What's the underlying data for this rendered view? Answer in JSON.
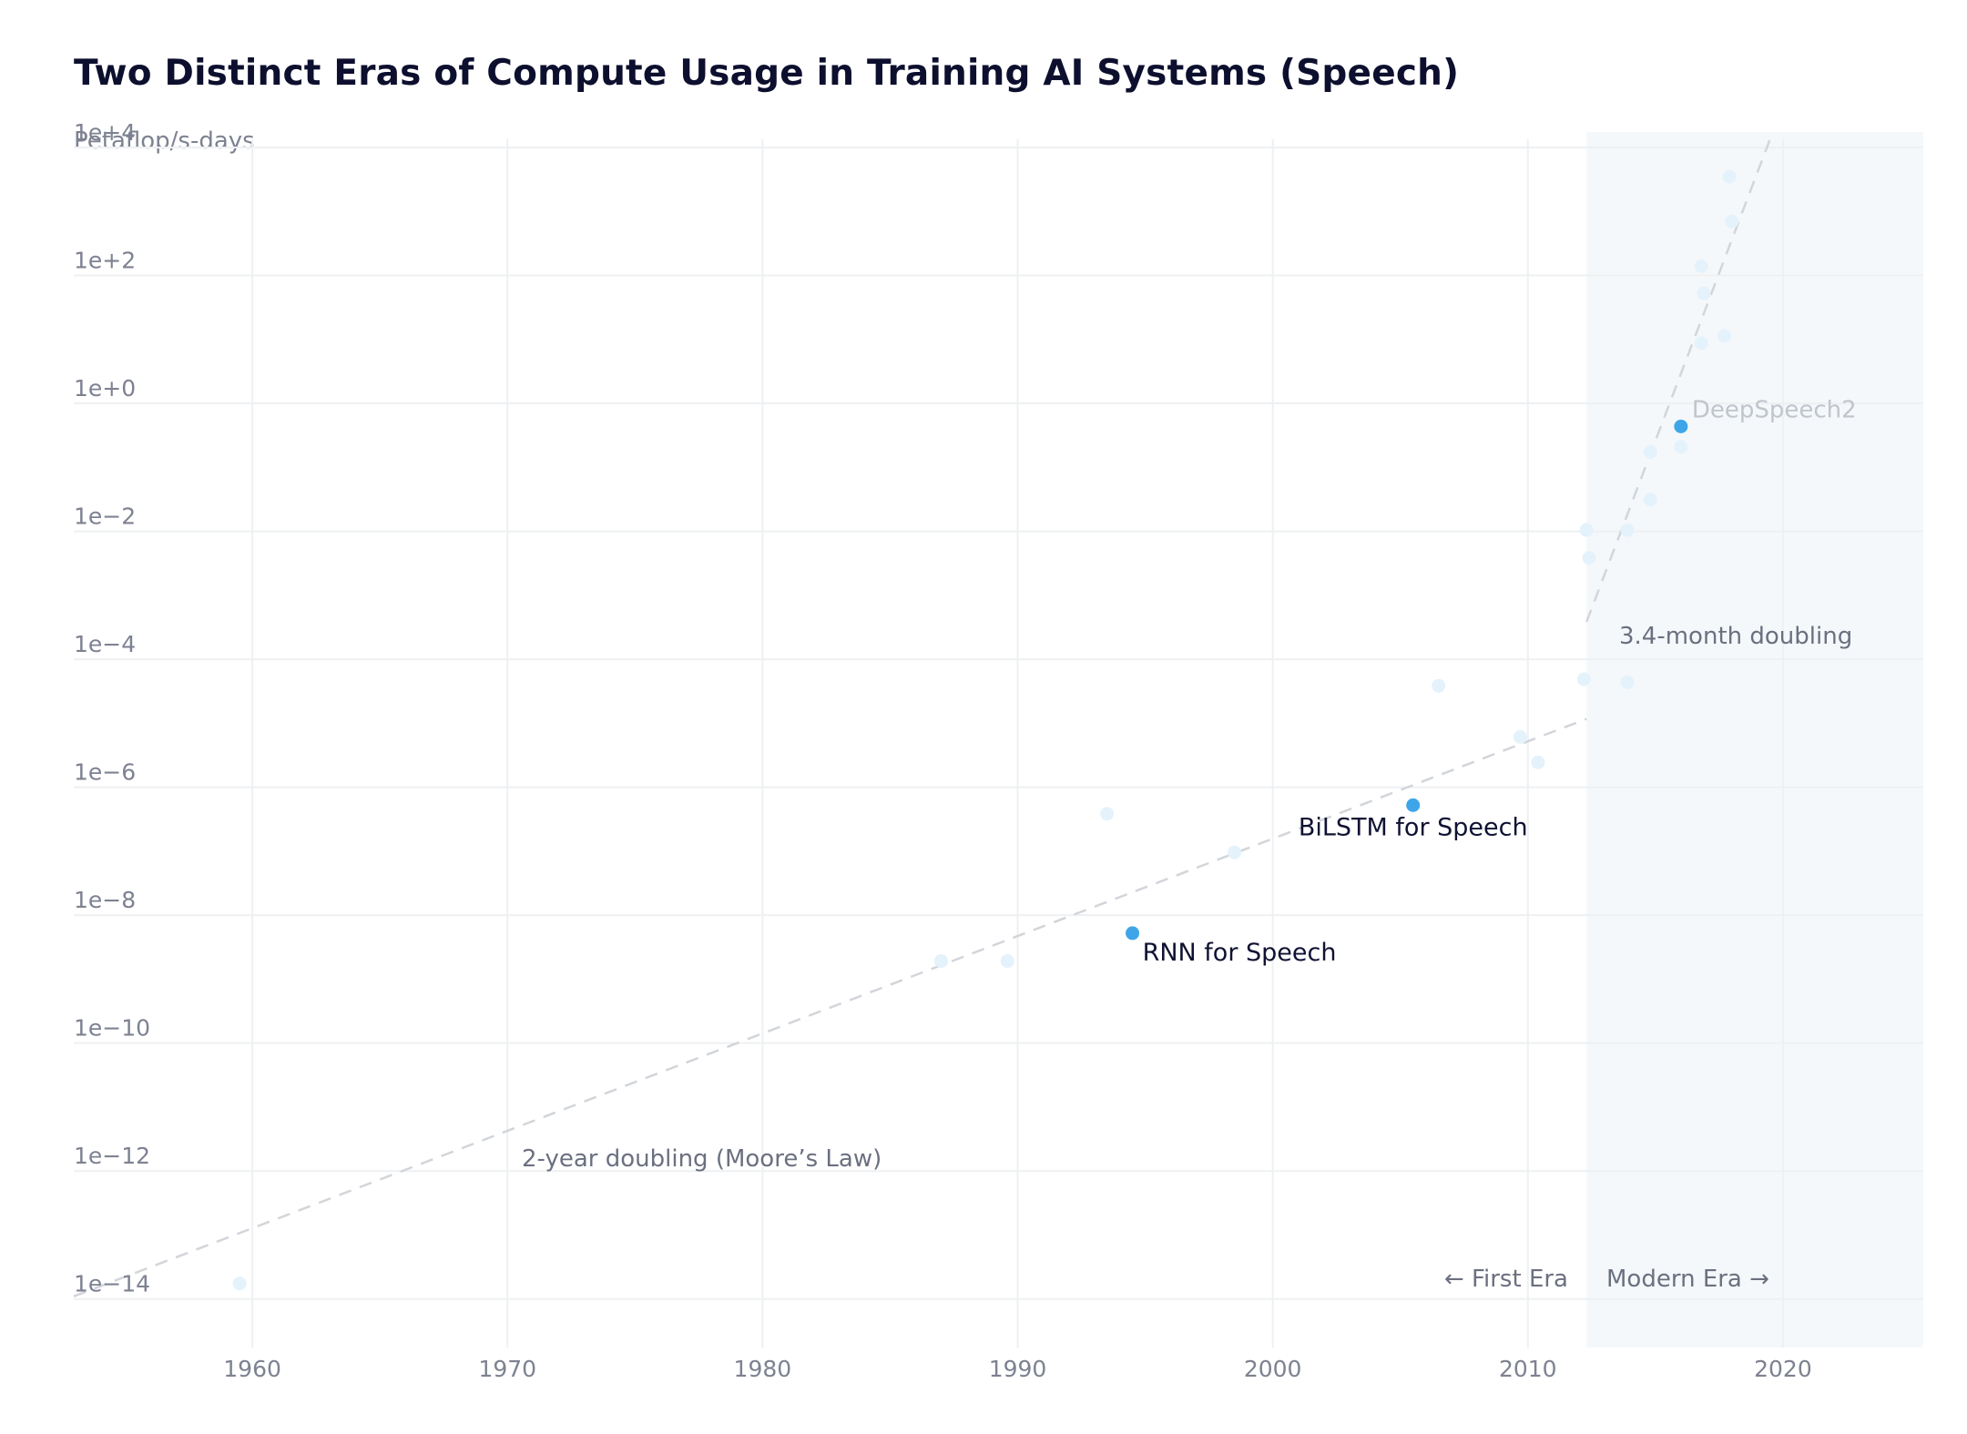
{
  "chart_data": {
    "type": "scatter",
    "title": "Two Distinct Eras of Compute Usage in Training AI Systems (Speech)",
    "ylabel": "Petaflop/s-days",
    "xlabel": "",
    "y_scale": "log10",
    "xlim": [
      1953,
      2025.5
    ],
    "ylim": [
      1e-15,
      10000
    ],
    "x_ticks": [
      {
        "value": 1960,
        "label": "1960"
      },
      {
        "value": 1970,
        "label": "1970"
      },
      {
        "value": 1980,
        "label": "1980"
      },
      {
        "value": 1990,
        "label": "1990"
      },
      {
        "value": 2000,
        "label": "2000"
      },
      {
        "value": 2010,
        "label": "2010"
      },
      {
        "value": 2020,
        "label": "2020"
      }
    ],
    "y_ticks": [
      {
        "value": 10000,
        "label": "1e+4"
      },
      {
        "value": 100,
        "label": "1e+2"
      },
      {
        "value": 1,
        "label": "1e+0"
      },
      {
        "value": 0.01,
        "label": "1e−2"
      },
      {
        "value": 0.0001,
        "label": "1e−4"
      },
      {
        "value": 1e-06,
        "label": "1e−6"
      },
      {
        "value": 1e-08,
        "label": "1e−8"
      },
      {
        "value": 1e-10,
        "label": "1e−10"
      },
      {
        "value": 1e-12,
        "label": "1e−12"
      },
      {
        "value": 1e-14,
        "label": "1e−14"
      }
    ],
    "grid": true,
    "modern_era_start": 2012.3,
    "highlighted_points": [
      {
        "label": "RNN for Speech",
        "x": 1994.5,
        "y": 3e-09
      },
      {
        "label": "BiLSTM for Speech",
        "x": 2005.5,
        "y": 3e-07
      },
      {
        "label": "DeepSpeech2",
        "x": 2016.0,
        "y": 0.25
      }
    ],
    "background_points": [
      {
        "x": 1959.5,
        "y": 1e-14
      },
      {
        "x": 1987.0,
        "y": 1.1e-09
      },
      {
        "x": 1989.6,
        "y": 1.1e-09
      },
      {
        "x": 1993.5,
        "y": 2.2e-07
      },
      {
        "x": 1998.5,
        "y": 5.5e-08
      },
      {
        "x": 2006.5,
        "y": 2.2e-05
      },
      {
        "x": 2009.7,
        "y": 3.5e-06
      },
      {
        "x": 2010.4,
        "y": 1.4e-06
      },
      {
        "x": 2012.2,
        "y": 2.8e-05
      },
      {
        "x": 2012.3,
        "y": 0.006
      },
      {
        "x": 2012.4,
        "y": 0.0022
      },
      {
        "x": 2013.9,
        "y": 2.5e-05
      },
      {
        "x": 2013.9,
        "y": 0.006
      },
      {
        "x": 2014.8,
        "y": 0.1
      },
      {
        "x": 2014.8,
        "y": 0.018
      },
      {
        "x": 2016.0,
        "y": 0.12
      },
      {
        "x": 2016.8,
        "y": 5
      },
      {
        "x": 2016.8,
        "y": 80
      },
      {
        "x": 2016.9,
        "y": 30
      },
      {
        "x": 2017.7,
        "y": 6.5
      },
      {
        "x": 2017.9,
        "y": 2000
      },
      {
        "x": 2018.0,
        "y": 400
      }
    ],
    "trend_lines": [
      {
        "name": "2-year doubling (Moore’s Law)",
        "x0": 1953,
        "y0": 6.3e-15,
        "x1": 2012.3,
        "y1": 6.7e-06
      },
      {
        "name": "3.4-month doubling",
        "x0": 2012.3,
        "y0": 0.00022,
        "x1": 2019.6,
        "y1": 10000
      }
    ],
    "annotations": {
      "moores_law": "2-year doubling (Moore’s Law)",
      "modern_trend": "3.4-month doubling",
      "first_era": "← First Era",
      "modern_era": "Modern Era →"
    }
  },
  "colors": {
    "highlight_point": "#3ea6e8",
    "background_point": "#e4f2fc",
    "trend_line": "#d2d5da",
    "modern_band": "#f5f8fa",
    "grid": "#eef0f2",
    "title": "#0d0f2e",
    "tick": "#7d8291"
  }
}
